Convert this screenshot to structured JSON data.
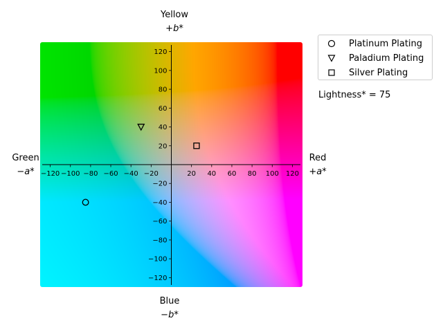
{
  "chart_data": {
    "type": "scatter",
    "title": "",
    "axis_labels": {
      "top": {
        "name": "Yellow",
        "sign": "+b*"
      },
      "bottom": {
        "name": "Blue",
        "sign": "−b*"
      },
      "left": {
        "name": "Green",
        "sign": "−a*"
      },
      "right": {
        "name": "Red",
        "sign": "+a*"
      }
    },
    "xlim": [
      -130,
      130
    ],
    "ylim": [
      -130,
      130
    ],
    "x_ticks": [
      -120,
      -100,
      -80,
      -60,
      -40,
      -20,
      20,
      40,
      60,
      80,
      100,
      120
    ],
    "y_ticks": [
      -120,
      -100,
      -80,
      -60,
      -40,
      -20,
      20,
      40,
      60,
      80,
      100,
      120
    ],
    "annotation": "Lightness* = 75",
    "background": "CIELAB a*b* color plane at L* = 75",
    "legend_position": "upper-right outside plot",
    "series": [
      {
        "name": "Platinum Plating",
        "marker": "circle",
        "points": [
          {
            "x": -85,
            "y": -40
          }
        ]
      },
      {
        "name": "Paladium Plating",
        "marker": "triangle_down",
        "points": [
          {
            "x": -30,
            "y": 40
          }
        ]
      },
      {
        "name": "Silver Plating",
        "marker": "square",
        "points": [
          {
            "x": 25,
            "y": 20
          }
        ]
      }
    ]
  }
}
